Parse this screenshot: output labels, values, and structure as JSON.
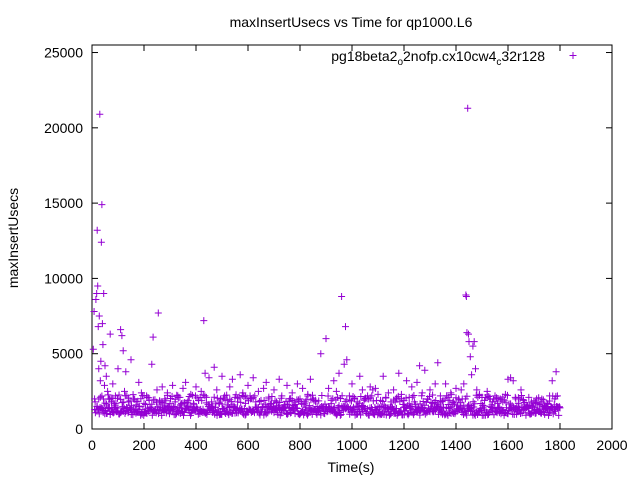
{
  "chart_data": {
    "type": "scatter",
    "title": "maxInsertUsecs vs Time for qp1000.L6",
    "xlabel": "Time(s)",
    "ylabel": "maxInsertUsecs",
    "xlim": [
      0,
      2000
    ],
    "ylim": [
      0,
      25500
    ],
    "xticks": [
      "0",
      "200",
      "400",
      "600",
      "800",
      "1000",
      "1200",
      "1400",
      "1600",
      "1800",
      "2000"
    ],
    "yticks": [
      "0",
      "5000",
      "10000",
      "15000",
      "20000",
      "25000"
    ],
    "grid": false,
    "legend_position": "top-right",
    "marker": "+",
    "marker_color": "#9400d3",
    "series": [
      {
        "name_parts": [
          {
            "text": "pg18beta2",
            "sub": false
          },
          {
            "text": "o",
            "sub": true
          },
          {
            "text": "2nofp.cx10cw4",
            "sub": false
          },
          {
            "text": "c",
            "sub": true
          },
          {
            "text": "32r128",
            "sub": false
          }
        ],
        "points": [
          [
            5,
            5300
          ],
          [
            8,
            7800
          ],
          [
            10,
            2000
          ],
          [
            12,
            1800
          ],
          [
            15,
            8600
          ],
          [
            18,
            9000
          ],
          [
            20,
            13200
          ],
          [
            22,
            9500
          ],
          [
            24,
            6800
          ],
          [
            26,
            4000
          ],
          [
            28,
            7500
          ],
          [
            30,
            20900
          ],
          [
            32,
            3200
          ],
          [
            34,
            4500
          ],
          [
            36,
            12400
          ],
          [
            38,
            14900
          ],
          [
            40,
            7000
          ],
          [
            42,
            5600
          ],
          [
            45,
            9000
          ],
          [
            48,
            2900
          ],
          [
            50,
            4200
          ],
          [
            55,
            3500
          ],
          [
            60,
            2500
          ],
          [
            65,
            2000
          ],
          [
            70,
            6300
          ],
          [
            75,
            1800
          ],
          [
            80,
            3000
          ],
          [
            85,
            1700
          ],
          [
            90,
            2200
          ],
          [
            100,
            4000
          ],
          [
            110,
            6600
          ],
          [
            115,
            6200
          ],
          [
            120,
            5200
          ],
          [
            125,
            2500
          ],
          [
            130,
            3800
          ],
          [
            140,
            1800
          ],
          [
            150,
            4600
          ],
          [
            160,
            2000
          ],
          [
            170,
            1600
          ],
          [
            180,
            3100
          ],
          [
            190,
            2400
          ],
          [
            200,
            1700
          ],
          [
            210,
            2200
          ],
          [
            220,
            1900
          ],
          [
            230,
            4300
          ],
          [
            235,
            6100
          ],
          [
            250,
            2600
          ],
          [
            255,
            7700
          ],
          [
            260,
            1800
          ],
          [
            270,
            2800
          ],
          [
            280,
            2000
          ],
          [
            290,
            2400
          ],
          [
            300,
            1700
          ],
          [
            310,
            2900
          ],
          [
            320,
            1800
          ],
          [
            330,
            2200
          ],
          [
            340,
            1600
          ],
          [
            350,
            2700
          ],
          [
            360,
            3100
          ],
          [
            370,
            1900
          ],
          [
            380,
            2300
          ],
          [
            390,
            1700
          ],
          [
            400,
            2800
          ],
          [
            410,
            1900
          ],
          [
            420,
            2500
          ],
          [
            430,
            7200
          ],
          [
            435,
            3700
          ],
          [
            440,
            2100
          ],
          [
            450,
            3400
          ],
          [
            460,
            1800
          ],
          [
            470,
            4100
          ],
          [
            480,
            2600
          ],
          [
            490,
            1700
          ],
          [
            500,
            3500
          ],
          [
            510,
            2200
          ],
          [
            520,
            1900
          ],
          [
            530,
            2800
          ],
          [
            540,
            3300
          ],
          [
            550,
            2100
          ],
          [
            560,
            1800
          ],
          [
            570,
            3600
          ],
          [
            580,
            2400
          ],
          [
            590,
            1700
          ],
          [
            600,
            2900
          ],
          [
            610,
            2000
          ],
          [
            620,
            3400
          ],
          [
            630,
            1800
          ],
          [
            640,
            2500
          ],
          [
            650,
            1900
          ],
          [
            660,
            2700
          ],
          [
            670,
            3100
          ],
          [
            680,
            2000
          ],
          [
            690,
            1700
          ],
          [
            700,
            2600
          ],
          [
            710,
            1800
          ],
          [
            720,
            3300
          ],
          [
            730,
            2200
          ],
          [
            740,
            1600
          ],
          [
            750,
            2900
          ],
          [
            760,
            2000
          ],
          [
            770,
            2400
          ],
          [
            780,
            1800
          ],
          [
            790,
            3000
          ],
          [
            800,
            2000
          ],
          [
            810,
            2700
          ],
          [
            820,
            1800
          ],
          [
            830,
            2300
          ],
          [
            840,
            3300
          ],
          [
            850,
            2000
          ],
          [
            860,
            1800
          ],
          [
            880,
            5000
          ],
          [
            900,
            6000
          ],
          [
            910,
            2700
          ],
          [
            920,
            1900
          ],
          [
            930,
            3200
          ],
          [
            940,
            2500
          ],
          [
            950,
            3700
          ],
          [
            960,
            8800
          ],
          [
            970,
            4300
          ],
          [
            975,
            6800
          ],
          [
            980,
            4600
          ],
          [
            990,
            2200
          ],
          [
            1000,
            3000
          ],
          [
            1010,
            2000
          ],
          [
            1020,
            1800
          ],
          [
            1030,
            3500
          ],
          [
            1040,
            2600
          ],
          [
            1050,
            2000
          ],
          [
            1060,
            2200
          ],
          [
            1070,
            2800
          ],
          [
            1080,
            2600
          ],
          [
            1090,
            2700
          ],
          [
            1100,
            2300
          ],
          [
            1110,
            1900
          ],
          [
            1120,
            3500
          ],
          [
            1130,
            2100
          ],
          [
            1140,
            2400
          ],
          [
            1150,
            1800
          ],
          [
            1160,
            2600
          ],
          [
            1170,
            2000
          ],
          [
            1180,
            3700
          ],
          [
            1190,
            2300
          ],
          [
            1200,
            1900
          ],
          [
            1210,
            3200
          ],
          [
            1220,
            2100
          ],
          [
            1230,
            2800
          ],
          [
            1240,
            1800
          ],
          [
            1250,
            3100
          ],
          [
            1260,
            4200
          ],
          [
            1270,
            2400
          ],
          [
            1280,
            3900
          ],
          [
            1290,
            2000
          ],
          [
            1300,
            2600
          ],
          [
            1310,
            1700
          ],
          [
            1320,
            3000
          ],
          [
            1330,
            4400
          ],
          [
            1340,
            2200
          ],
          [
            1350,
            1900
          ],
          [
            1360,
            3000
          ],
          [
            1370,
            2100
          ],
          [
            1380,
            2400
          ],
          [
            1390,
            1800
          ],
          [
            1400,
            2700
          ],
          [
            1410,
            2000
          ],
          [
            1420,
            2600
          ],
          [
            1430,
            3000
          ],
          [
            1438,
            8900
          ],
          [
            1440,
            8800
          ],
          [
            1442,
            6400
          ],
          [
            1445,
            21300
          ],
          [
            1448,
            6300
          ],
          [
            1450,
            5800
          ],
          [
            1455,
            4800
          ],
          [
            1460,
            3600
          ],
          [
            1465,
            5500
          ],
          [
            1470,
            5800
          ],
          [
            1475,
            4000
          ],
          [
            1480,
            2600
          ],
          [
            1490,
            2300
          ],
          [
            1500,
            2100
          ],
          [
            1510,
            1900
          ],
          [
            1520,
            2500
          ],
          [
            1530,
            2000
          ],
          [
            1540,
            1800
          ],
          [
            1550,
            2200
          ],
          [
            1560,
            1700
          ],
          [
            1570,
            2000
          ],
          [
            1580,
            1800
          ],
          [
            1590,
            2300
          ],
          [
            1600,
            3300
          ],
          [
            1610,
            3400
          ],
          [
            1620,
            3200
          ],
          [
            1630,
            2000
          ],
          [
            1640,
            1700
          ],
          [
            1650,
            2600
          ],
          [
            1660,
            1900
          ],
          [
            1670,
            1600
          ],
          [
            1680,
            2100
          ],
          [
            1690,
            1800
          ],
          [
            1700,
            1700
          ],
          [
            1710,
            2000
          ],
          [
            1720,
            1600
          ],
          [
            1730,
            1800
          ],
          [
            1740,
            1500
          ],
          [
            1750,
            1700
          ],
          [
            1760,
            2200
          ],
          [
            1770,
            3200
          ],
          [
            1780,
            2000
          ],
          [
            1785,
            3800
          ],
          [
            1790,
            2200
          ],
          [
            1800,
            1400
          ]
        ],
        "dense_band": {
          "x_start": 10,
          "x_end": 1800,
          "x_step": 3,
          "y_low": 900,
          "y_high": 1500
        },
        "mid_band": {
          "x_start": 20,
          "x_end": 1800,
          "x_step": 6,
          "y_low": 1400,
          "y_high": 2300
        }
      }
    ],
    "extra_points": [
      [
        1850,
        24800
      ]
    ]
  }
}
